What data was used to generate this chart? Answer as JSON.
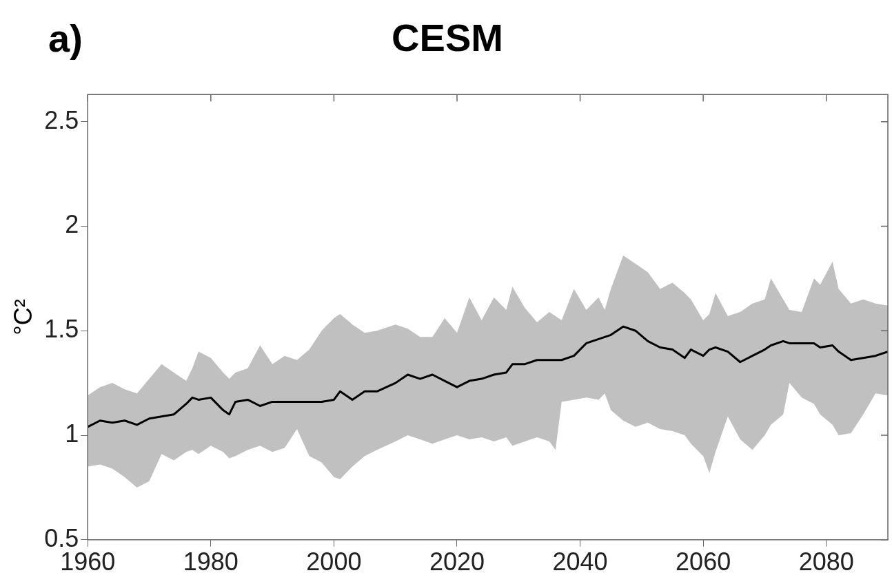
{
  "chart_data": {
    "type": "line",
    "title": "CESM",
    "ylabel": "°C²",
    "annotations": [
      "a)"
    ],
    "xlim": [
      1960,
      2090
    ],
    "xticks": [
      1960,
      1980,
      2000,
      2020,
      2040,
      2060,
      2080
    ],
    "ylim": [
      0.5,
      2.63
    ],
    "yticks": [
      0.5,
      1,
      1.5,
      2,
      2.5
    ],
    "grid": false,
    "legend": false,
    "marker": "none",
    "line_style": "solid",
    "series": [
      {
        "color": "#000000",
        "x": [
          1960,
          1962,
          1964,
          1966,
          1968,
          1970,
          1972,
          1974,
          1976,
          1977,
          1978,
          1980,
          1982,
          1983,
          1984,
          1986,
          1988,
          1990,
          1992,
          1994,
          1996,
          1998,
          2000,
          2001,
          2003,
          2005,
          2007,
          2010,
          2012,
          2014,
          2016,
          2018,
          2020,
          2022,
          2024,
          2026,
          2028,
          2029,
          2031,
          2033,
          2035,
          2036,
          2037,
          2039,
          2041,
          2043,
          2044,
          2045,
          2047,
          2049,
          2051,
          2053,
          2055,
          2057,
          2058,
          2060,
          2061,
          2062,
          2064,
          2066,
          2068,
          2070,
          2071,
          2073,
          2074,
          2076,
          2078,
          2079,
          2081,
          2082,
          2084,
          2086,
          2088,
          2090
        ],
        "values": [
          1.04,
          1.07,
          1.06,
          1.07,
          1.05,
          1.08,
          1.09,
          1.1,
          1.15,
          1.18,
          1.17,
          1.18,
          1.12,
          1.1,
          1.16,
          1.17,
          1.14,
          1.16,
          1.16,
          1.16,
          1.16,
          1.16,
          1.17,
          1.21,
          1.17,
          1.21,
          1.21,
          1.25,
          1.29,
          1.27,
          1.29,
          1.26,
          1.23,
          1.26,
          1.27,
          1.29,
          1.3,
          1.34,
          1.34,
          1.36,
          1.36,
          1.36,
          1.36,
          1.38,
          1.44,
          1.46,
          1.47,
          1.48,
          1.52,
          1.5,
          1.45,
          1.42,
          1.41,
          1.37,
          1.41,
          1.38,
          1.41,
          1.42,
          1.4,
          1.35,
          1.38,
          1.41,
          1.43,
          1.45,
          1.44,
          1.44,
          1.44,
          1.42,
          1.43,
          1.4,
          1.36,
          1.37,
          1.38,
          1.4
        ],
        "upper": [
          1.19,
          1.23,
          1.25,
          1.22,
          1.2,
          1.27,
          1.34,
          1.3,
          1.26,
          1.32,
          1.4,
          1.37,
          1.3,
          1.27,
          1.3,
          1.32,
          1.43,
          1.34,
          1.38,
          1.36,
          1.41,
          1.5,
          1.56,
          1.58,
          1.53,
          1.49,
          1.5,
          1.53,
          1.51,
          1.47,
          1.47,
          1.56,
          1.49,
          1.66,
          1.55,
          1.66,
          1.6,
          1.71,
          1.61,
          1.54,
          1.59,
          1.57,
          1.55,
          1.7,
          1.6,
          1.66,
          1.6,
          1.7,
          1.86,
          1.82,
          1.78,
          1.7,
          1.73,
          1.68,
          1.65,
          1.55,
          1.58,
          1.68,
          1.57,
          1.59,
          1.63,
          1.65,
          1.75,
          1.65,
          1.6,
          1.59,
          1.75,
          1.72,
          1.83,
          1.7,
          1.63,
          1.65,
          1.63,
          1.62
        ],
        "lower": [
          0.85,
          0.86,
          0.84,
          0.8,
          0.75,
          0.78,
          0.91,
          0.88,
          0.92,
          0.93,
          0.91,
          0.95,
          0.92,
          0.89,
          0.9,
          0.93,
          0.95,
          0.92,
          0.94,
          1.03,
          0.9,
          0.87,
          0.8,
          0.79,
          0.85,
          0.9,
          0.93,
          0.97,
          1,
          0.98,
          0.96,
          0.98,
          1,
          0.98,
          0.99,
          0.97,
          0.99,
          0.95,
          0.97,
          0.99,
          0.97,
          0.93,
          1.16,
          1.17,
          1.18,
          1.17,
          1.2,
          1.12,
          1.07,
          1.04,
          1.06,
          1.03,
          1.02,
          1,
          0.96,
          0.9,
          0.82,
          0.92,
          1.09,
          0.98,
          0.93,
          1,
          1.05,
          1.1,
          1.25,
          1.18,
          1.15,
          1.1,
          1.05,
          1,
          1.01,
          1.1,
          1.2,
          1.19
        ]
      }
    ]
  }
}
